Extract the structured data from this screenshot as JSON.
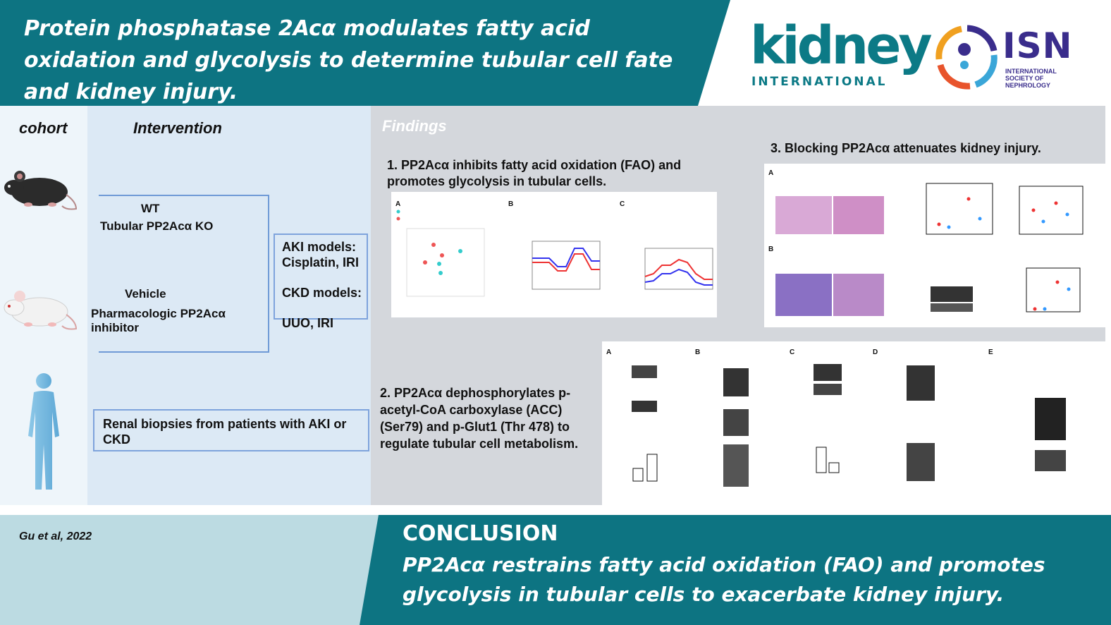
{
  "header": {
    "title": "Protein phosphatase 2Acα modulates fatty acid oxidation and glycolysis to determine tubular cell fate and kidney injury.",
    "journal_logo_main": "kidney",
    "journal_logo_sub": "INTERNATIONAL",
    "society_logo_main": "ISN",
    "society_logo_sub": "INTERNATIONAL SOCIETY OF NEPHROLOGY"
  },
  "left": {
    "cohort_header": "cohort",
    "intervention_header": "Intervention",
    "genetic": {
      "line1": "WT",
      "line2": "Tubular PP2Acα KO"
    },
    "pharma": {
      "line1": "Vehicle",
      "line2": "Pharmacologic PP2Acα inhibitor"
    },
    "models": {
      "aki_label": "AKI models:",
      "aki_value": "Cisplatin, IRI",
      "ckd_label": "CKD models:",
      "ckd_value": "UUO, IRI"
    },
    "biopsy": "Renal biopsies from patients with AKI or CKD"
  },
  "findings": {
    "header": "Findings",
    "f1": "1. PP2Acα inhibits fatty acid oxidation (FAO) and promotes glycolysis in tubular cells.",
    "f2": "2. PP2Acα dephosphorylates p-acetyl-CoA carboxylase (ACC) (Ser79) and p-Glut1 (Thr 478) to regulate tubular  cell metabolism.",
    "f3": "3. Blocking PP2Acα attenuates kidney injury."
  },
  "footer": {
    "citation": "Gu et al, 2022",
    "conclusion_header": "CONCLUSION",
    "conclusion_text": "PP2Acα restrains fatty acid oxidation (FAO) and promotes glycolysis in tubular cells to exacerbate kidney injury."
  },
  "colors": {
    "teal": "#0d7482",
    "light_blue": "#e3eef7",
    "findings_bg": "#d4d7dc",
    "box_border": "#7ea3dc"
  }
}
